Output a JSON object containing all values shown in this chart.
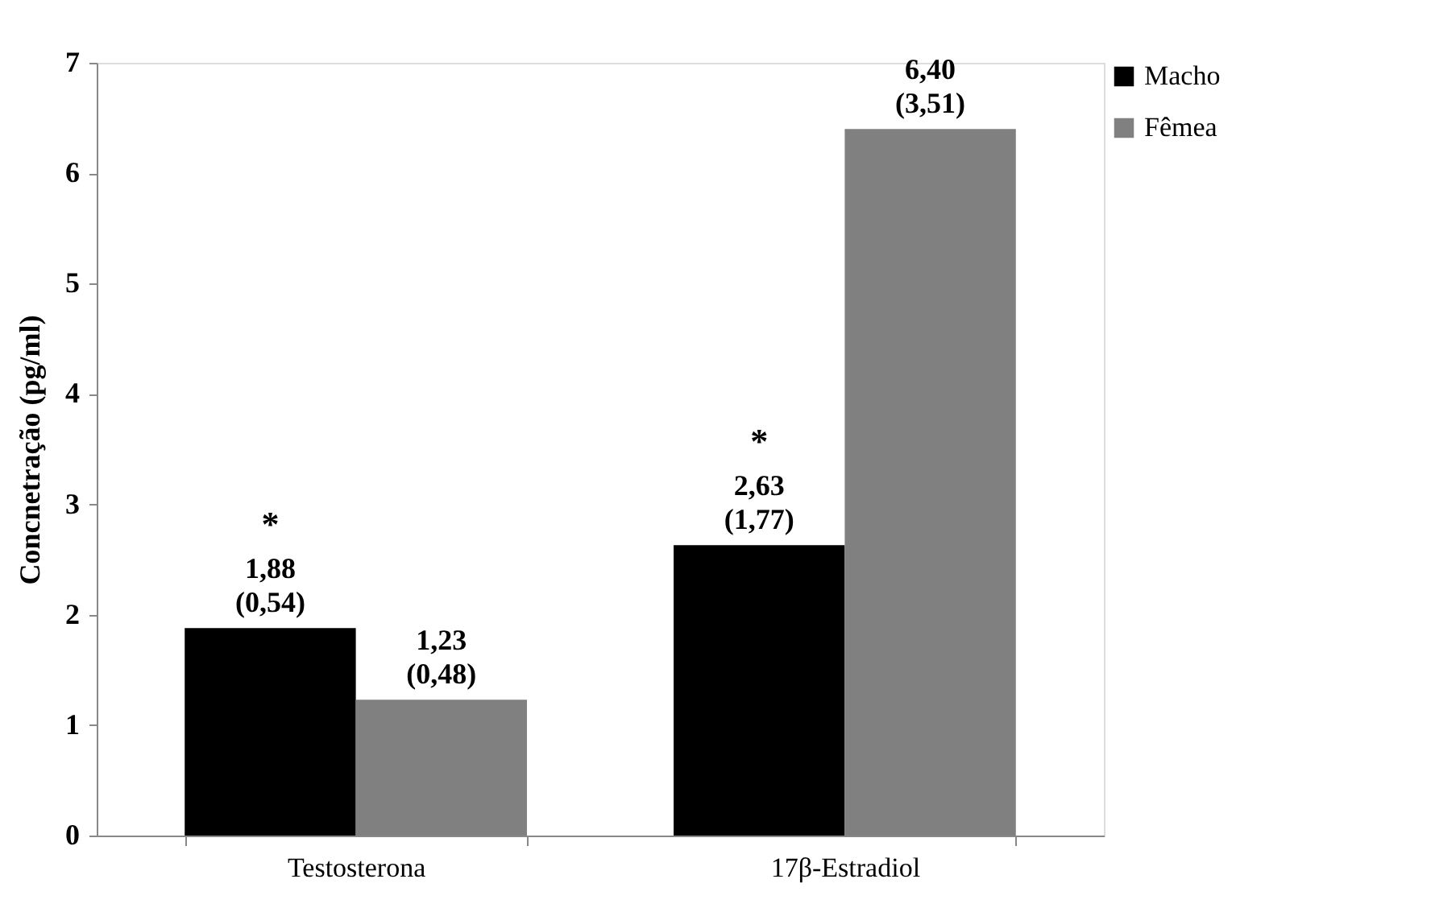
{
  "chart_data": {
    "type": "bar",
    "ylabel": "Concnetração (pg/ml)",
    "categories": [
      "Testosterona",
      "17β-Estradiol"
    ],
    "series": [
      {
        "name": "Macho",
        "color": "#000000",
        "values": [
          1.88,
          2.63
        ],
        "value_labels": [
          "1,88\n(0,54)",
          "2,63\n(1,77)"
        ]
      },
      {
        "name": "Fêmea",
        "color": "#808080",
        "values": [
          1.23,
          6.4
        ],
        "value_labels": [
          "1,23\n(0,48)",
          "6,40\n(3,51)"
        ]
      }
    ],
    "annotations": [
      "*",
      "*"
    ],
    "ylim": [
      0,
      7
    ],
    "yticks": [
      0,
      1,
      2,
      3,
      4,
      5,
      6,
      7
    ],
    "grid": false,
    "legend": "right"
  }
}
